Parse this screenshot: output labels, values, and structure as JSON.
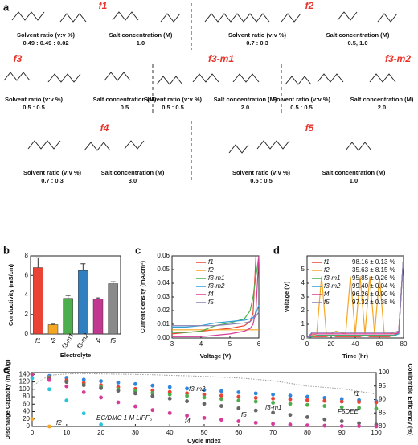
{
  "panel_labels": [
    "a",
    "b",
    "c",
    "d",
    "e"
  ],
  "formulations": [
    {
      "name": "f1",
      "solvent_ratio_label": "Solvent ratio (v:v %)",
      "solvent_ratio": "0.49 : 0.49 : 0.02",
      "salt_label": "Salt concentration (M)",
      "salt_concentration": "1.0"
    },
    {
      "name": "f2",
      "solvent_ratio_label": "Solvent ratio (v:v %)",
      "solvent_ratio": "0.7 : 0.3",
      "salt_label": "Salt concentration (M)",
      "salt_concentration": "0.5, 1.0"
    },
    {
      "name": "f3",
      "solvent_ratio_label": "Solvent ratio (v:v %)",
      "solvent_ratio": "0.5 : 0.5",
      "salt_label": "Salt concentration (M)",
      "salt_concentration": "0.5"
    },
    {
      "name": "f3-m1",
      "solvent_ratio_label": "Solvent ratio (v:v %)",
      "solvent_ratio": "0.5 : 0.5",
      "salt_label": "Salt concentration (M)",
      "salt_concentration": "2.0"
    },
    {
      "name": "f3-m2",
      "solvent_ratio_label": "Solvent ratio (v:v %)",
      "solvent_ratio": "0.5 : 0.5",
      "salt_label": "Salt concentration (M)",
      "salt_concentration": "2.0"
    },
    {
      "name": "f4",
      "solvent_ratio_label": "Solvent ratio (v:v %)",
      "solvent_ratio": "0.7 : 0.3",
      "salt_label": "Salt concentration (M)",
      "salt_concentration": "3.0"
    },
    {
      "name": "f5",
      "solvent_ratio_label": "Solvent ratio (v:v %)",
      "solvent_ratio": "0.5 : 0.5",
      "salt_label": "Salt concentration (M)",
      "salt_concentration": "1.0"
    }
  ],
  "chart_data": [
    {
      "type": "bar",
      "x_label": "Electrolyte",
      "y_label": "Conductivity (mS/cm)",
      "categories": [
        "f1",
        "f2",
        "f3-m1",
        "f3-m2",
        "f4",
        "f5"
      ],
      "values": [
        6.8,
        0.95,
        3.65,
        6.5,
        3.6,
        5.15
      ],
      "errors": [
        1.0,
        0.05,
        0.3,
        0.7,
        0.1,
        0.2
      ],
      "colors": [
        "#ea4335",
        "#f5a623",
        "#4cae4c",
        "#2f7fc1",
        "#c2378f",
        "#8a8a8a"
      ],
      "ylim": [
        0,
        8
      ],
      "yticks": [
        0,
        2,
        4,
        6,
        8
      ]
    },
    {
      "type": "line",
      "x_label": "Voltage (V)",
      "y_label": "Current density (mA/cm²)",
      "x": [
        3,
        3.5,
        4,
        4.5,
        5,
        5.5,
        5.7,
        5.8,
        5.9,
        6
      ],
      "series": [
        {
          "name": "f1",
          "color": "#ea4335",
          "values": [
            0.003,
            0.004,
            0.005,
            0.006,
            0.007,
            0.009,
            0.012,
            0.018,
            0.06,
            null
          ]
        },
        {
          "name": "f2",
          "color": "#f5a623",
          "values": [
            0.006,
            0.006,
            0.006,
            0.006,
            0.006,
            0.006,
            0.006,
            0.006,
            0.006,
            0.006
          ]
        },
        {
          "name": "f3-m1",
          "color": "#4cae4c",
          "values": [
            0.004,
            0.004,
            0.005,
            0.009,
            0.011,
            0.014,
            0.02,
            0.03,
            0.045,
            0.06
          ]
        },
        {
          "name": "f3-m2",
          "color": "#2f9fd8",
          "values": [
            0.008,
            0.008,
            0.009,
            0.011,
            0.012,
            0.013,
            0.014,
            0.015,
            0.018,
            0.024
          ]
        },
        {
          "name": "f4",
          "color": "#d63a9b",
          "values": [
            0.001,
            0.001,
            0.001,
            0.002,
            0.003,
            0.005,
            0.007,
            0.01,
            0.02,
            0.06
          ]
        },
        {
          "name": "f5",
          "color": "#8a7fb0",
          "values": [
            0.009,
            0.009,
            0.009,
            0.009,
            0.01,
            0.011,
            0.012,
            0.014,
            0.016,
            0.019
          ]
        }
      ],
      "xlim": [
        3,
        6
      ],
      "xticks": [
        3,
        4,
        5,
        6
      ],
      "ylim": [
        0,
        0.06
      ],
      "yticks": [
        {
          "value": 0,
          "label": "0.00"
        },
        0.01,
        0.02,
        0.03,
        0.04,
        0.05,
        0.06
      ]
    },
    {
      "type": "line",
      "x_label": "Time (hr)",
      "y_label": "Voltage (V)",
      "x": [
        0,
        4,
        8,
        12,
        16,
        20,
        24,
        28,
        32,
        36,
        40,
        44,
        48,
        52,
        56,
        60,
        64,
        68,
        72,
        76,
        80
      ],
      "series": [
        {
          "name": "f1",
          "ce": "98.16 ± 0.13 %",
          "color": "#ea4335",
          "values": [
            0,
            0.1,
            0.1,
            0.1,
            0.1,
            0.2,
            0.1,
            0.1,
            0.1,
            0.1,
            0.1,
            0.1,
            0.2,
            0.1,
            0.1,
            0.1,
            0.1,
            0.1,
            0.2,
            0.4,
            6
          ]
        },
        {
          "name": "f2",
          "ce": "35.63 ± 8.15 %",
          "color": "#f5a623",
          "values": [
            0,
            0.2,
            0.3,
            4.5,
            0.3,
            0.3,
            0.5,
            0.4,
            0.3,
            4.5,
            0.3,
            4.5,
            0.3,
            4.5,
            0.3,
            4.5,
            0.3,
            0.3,
            0.4,
            0.5,
            6
          ]
        },
        {
          "name": "f3-m1",
          "ce": "95.85 ± 0.26 %",
          "color": "#4cae4c",
          "values": [
            0,
            0.1,
            0.2,
            0.2,
            0.2,
            0.2,
            0.2,
            0.2,
            0.2,
            0.2,
            0.2,
            0.2,
            0.2,
            0.2,
            0.2,
            0.2,
            0.2,
            0.2,
            0.2,
            0.3,
            6
          ]
        },
        {
          "name": "f3-m2",
          "ce": "99.40 ± 0.04 %",
          "color": "#2f9fd8",
          "values": [
            0,
            0.15,
            0.15,
            0.15,
            0.15,
            0.15,
            0.15,
            0.15,
            0.15,
            0.15,
            0.15,
            0.15,
            0.15,
            0.15,
            0.15,
            0.15,
            0.15,
            0.15,
            0.15,
            0.3,
            6
          ]
        },
        {
          "name": "f4",
          "ce": "96.26 ± 0.90 %",
          "color": "#d63a9b",
          "values": [
            0,
            0.3,
            0.3,
            0.3,
            0.3,
            0.3,
            0.3,
            0.3,
            0.3,
            0.3,
            0.3,
            0.3,
            0.3,
            0.3,
            0.3,
            0.3,
            0.3,
            0.3,
            0.3,
            0.4,
            6
          ]
        },
        {
          "name": "f5",
          "ce": "97.32 ± 0.38 %",
          "color": "#8a7fb0",
          "values": [
            0,
            0.4,
            0.4,
            0.4,
            0.4,
            0.4,
            0.4,
            0.4,
            0.4,
            0.4,
            0.4,
            0.4,
            0.4,
            0.4,
            0.4,
            0.4,
            0.4,
            0.4,
            0.4,
            0.5,
            6
          ]
        }
      ],
      "xlim": [
        0,
        80
      ],
      "xticks": [
        0,
        20,
        40,
        60,
        80
      ],
      "ylim": [
        0,
        6
      ],
      "yticks": [
        0,
        1,
        2,
        3,
        4,
        5
      ]
    },
    {
      "type": "scatter",
      "x_label": "Cycle Index",
      "y_label": "Discharge Capacity (mAh/g)",
      "y2_label": "Coulombic Efficiency (%)",
      "x": [
        0,
        5,
        10,
        15,
        20,
        25,
        30,
        35,
        40,
        45,
        50,
        55,
        60,
        65,
        70,
        75,
        80,
        85,
        90,
        95,
        100
      ],
      "series": [
        {
          "name": "f3-m2",
          "color": "#2e86de",
          "values": [
            142,
            136,
            131,
            126,
            122,
            118,
            114,
            110,
            106,
            102,
            98,
            95,
            92,
            89,
            86,
            83,
            80,
            77,
            74,
            71,
            68
          ]
        },
        {
          "name": "f1",
          "color": "#ea4335",
          "values": [
            142,
            132,
            124,
            117,
            111,
            106,
            101,
            97,
            93,
            89,
            86,
            83,
            80,
            77,
            75,
            73,
            71,
            69,
            67,
            66,
            65
          ]
        },
        {
          "name": "f3-m1",
          "color": "#4cae4c",
          "values": [
            142,
            130,
            120,
            112,
            106,
            100,
            95,
            90,
            86,
            82,
            78,
            74,
            70,
            67,
            64,
            61,
            58,
            55,
            52,
            50,
            48
          ]
        },
        {
          "name": "f5",
          "color": "#666666",
          "values": [
            140,
            128,
            120,
            111,
            103,
            96,
            89,
            82,
            75,
            68,
            61,
            55,
            49,
            43,
            37,
            31,
            25,
            19,
            14,
            9,
            5
          ]
        },
        {
          "name": "f4",
          "color": "#d63a9b",
          "values": [
            140,
            125,
            108,
            92,
            78,
            65,
            54,
            44,
            36,
            29,
            23,
            18,
            14,
            10,
            7,
            5,
            3,
            2,
            1,
            1,
            0
          ]
        },
        {
          "name": "EC/DMC 1 M LiPF₆",
          "color": "#26c6da",
          "values": [
            130,
            100,
            70,
            35,
            5,
            null,
            null,
            null,
            null,
            null,
            null,
            null,
            null,
            null,
            null,
            null,
            null,
            null,
            null,
            null,
            null
          ]
        },
        {
          "name": "f2",
          "color": "#f5a623",
          "values": [
            20,
            0,
            null,
            null,
            null,
            null,
            null,
            null,
            null,
            null,
            null,
            null,
            null,
            null,
            null,
            null,
            null,
            null,
            null,
            null,
            null
          ]
        },
        {
          "name": "F5DEE",
          "color": "#9a9a9a",
          "axis": "y2",
          "values": [
            95,
            99,
            99.5,
            99.6,
            99.5,
            99.4,
            99.3,
            99.2,
            99,
            98.8,
            98.6,
            98.3,
            98,
            97.5,
            97,
            96,
            95,
            94.5,
            94,
            93,
            92
          ]
        }
      ],
      "xlim": [
        0,
        100
      ],
      "xticks": [
        0,
        10,
        20,
        30,
        40,
        50,
        60,
        70,
        80,
        90,
        100
      ],
      "ylim": [
        0,
        145
      ],
      "yticks": [
        0,
        20,
        40,
        60,
        80,
        100,
        120,
        140
      ],
      "y2lim": [
        80,
        100
      ],
      "y2ticks": [
        80,
        85,
        90,
        95,
        100
      ]
    }
  ]
}
